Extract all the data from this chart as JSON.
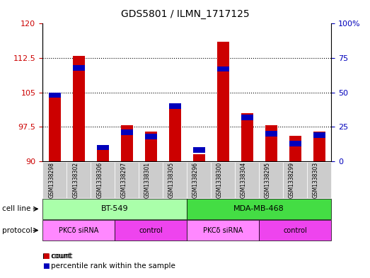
{
  "title": "GDS5801 / ILMN_1717125",
  "samples": [
    "GSM1338298",
    "GSM1338302",
    "GSM1338306",
    "GSM1338297",
    "GSM1338301",
    "GSM1338305",
    "GSM1338296",
    "GSM1338300",
    "GSM1338304",
    "GSM1338295",
    "GSM1338299",
    "GSM1338303"
  ],
  "count_values": [
    104.5,
    113.0,
    93.5,
    97.8,
    96.5,
    101.5,
    91.5,
    116.0,
    100.5,
    97.8,
    95.5,
    96.5
  ],
  "percentile_values": [
    48,
    68,
    10,
    21,
    18,
    40,
    8,
    67,
    32,
    20,
    13,
    19
  ],
  "cell_lines": [
    {
      "label": "BT-549",
      "start": 0,
      "end": 6,
      "color": "#aaffaa"
    },
    {
      "label": "MDA-MB-468",
      "start": 6,
      "end": 12,
      "color": "#44dd44"
    }
  ],
  "protocols": [
    {
      "label": "PKCδ siRNA",
      "start": 0,
      "end": 3,
      "color": "#ff88ff"
    },
    {
      "label": "control",
      "start": 3,
      "end": 6,
      "color": "#ee44ee"
    },
    {
      "label": "PKCδ siRNA",
      "start": 6,
      "end": 9,
      "color": "#ff88ff"
    },
    {
      "label": "control",
      "start": 9,
      "end": 12,
      "color": "#ee44ee"
    }
  ],
  "ylim_left": [
    90,
    120
  ],
  "ylim_right": [
    0,
    100
  ],
  "yticks_left": [
    90,
    97.5,
    105,
    112.5,
    120
  ],
  "yticks_right": [
    0,
    25,
    50,
    75,
    100
  ],
  "bar_color_red": "#cc0000",
  "bar_color_blue": "#0000bb",
  "plot_bg": "#ffffff",
  "left_tick_color": "#cc0000",
  "right_tick_color": "#0000bb",
  "grid_dotted_at": [
    97.5,
    105,
    112.5
  ],
  "sample_box_color": "#cccccc",
  "bar_width": 0.5
}
